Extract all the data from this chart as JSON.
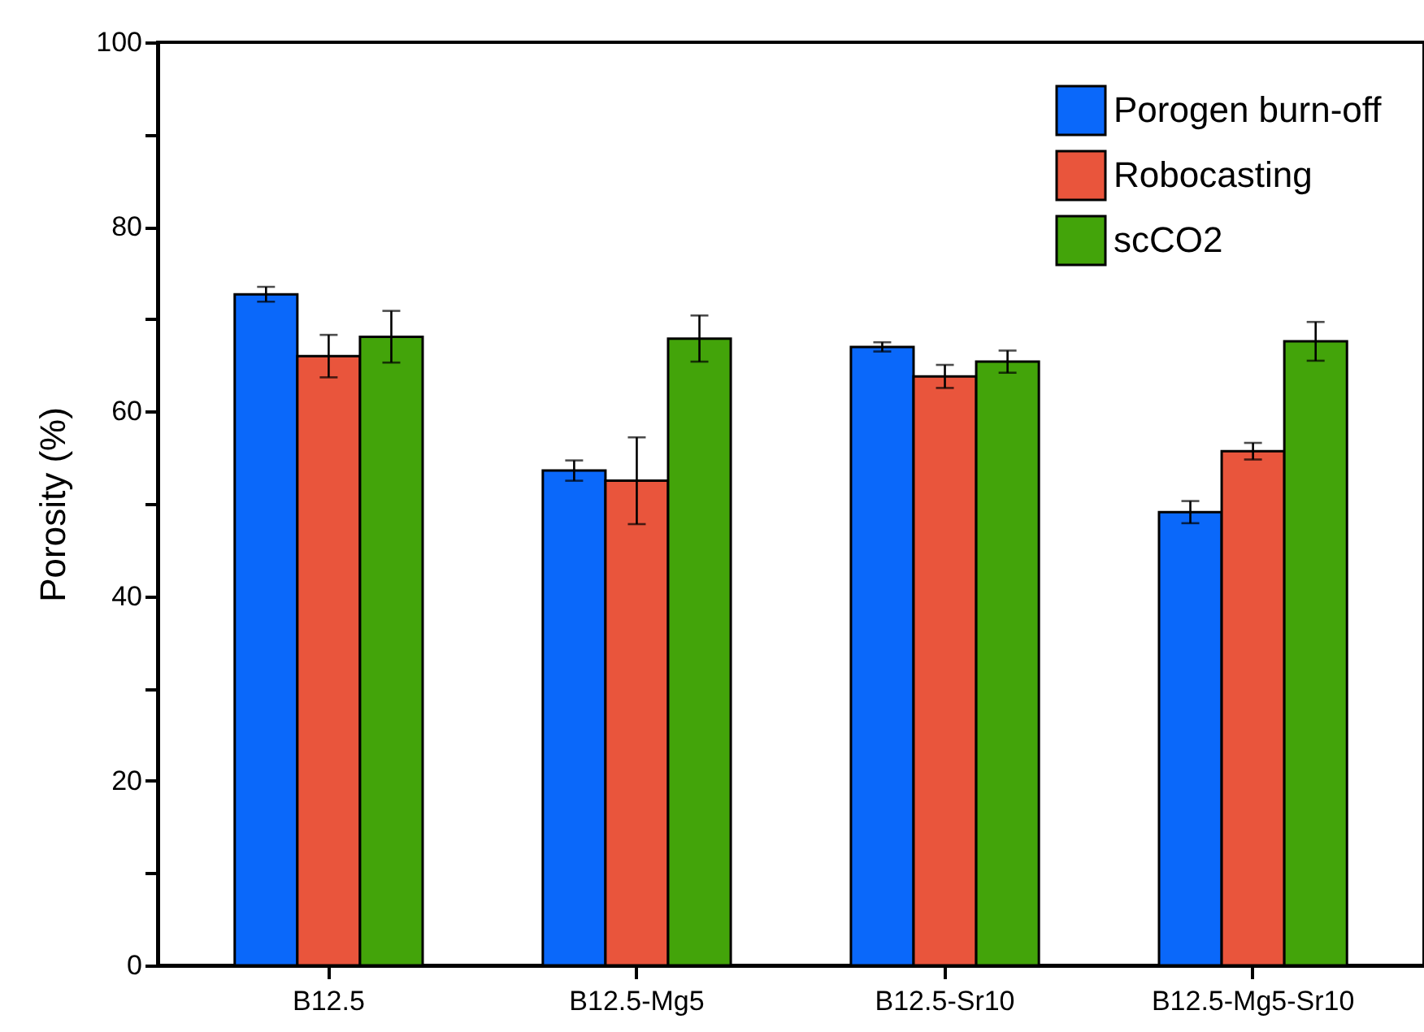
{
  "chart_data": {
    "type": "bar",
    "ylabel": "Porosity (%)",
    "categories": [
      "B12.5",
      "B12.5-Mg5",
      "B12.5-Sr10",
      "B12.5-Mg5-Sr10"
    ],
    "series": [
      {
        "name": "Porogen burn-off",
        "color": "#0a68fa",
        "values": [
          72.7,
          53.6,
          67.0,
          49.1
        ],
        "errors": [
          0.8,
          1.1,
          0.5,
          1.2
        ]
      },
      {
        "name": "Robocasting",
        "color": "#e9553c",
        "values": [
          66.0,
          52.5,
          63.8,
          55.7
        ],
        "errors": [
          2.3,
          4.7,
          1.25,
          0.9
        ]
      },
      {
        "name": "scCO2",
        "color": "#43a40a",
        "values": [
          68.1,
          67.9,
          65.4,
          67.6
        ],
        "errors": [
          2.8,
          2.5,
          1.2,
          2.1
        ]
      }
    ],
    "ylim": [
      0,
      100
    ],
    "yticks": [
      0,
      {
        "value": 10,
        "label": null
      },
      20,
      {
        "value": 30,
        "label": null
      },
      40,
      {
        "value": 50,
        "label": null
      },
      60,
      {
        "value": 70,
        "label": null
      },
      80,
      {
        "value": 90,
        "label": null
      },
      100
    ],
    "legend": "top right",
    "grid": false
  }
}
